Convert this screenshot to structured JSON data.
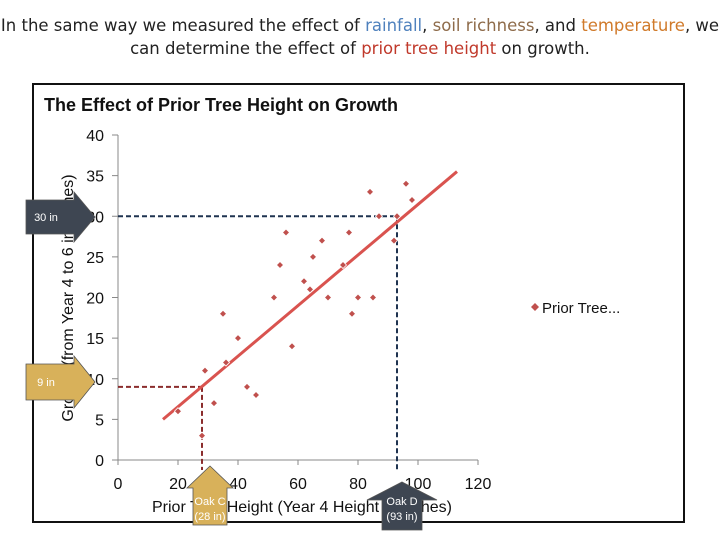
{
  "slide": {
    "heading_parts": [
      {
        "text": "In the same way we measured the effect of ",
        "cls": ""
      },
      {
        "text": "rainfall",
        "cls": "rain"
      },
      {
        "text": ", ",
        "cls": ""
      },
      {
        "text": "soil richness",
        "cls": "soil"
      },
      {
        "text": ", and ",
        "cls": ""
      },
      {
        "text": "temperature",
        "cls": "temp"
      },
      {
        "text": ", we can determine the effect of ",
        "cls": ""
      },
      {
        "text": "prior tree height",
        "cls": "prior"
      },
      {
        "text": " on growth.",
        "cls": ""
      }
    ]
  },
  "callouts": {
    "left_top": "30 in",
    "left_bottom": "9 in",
    "oak_c_name": "Oak C",
    "oak_c_value": "(28 in)",
    "oak_d_name": "Oak D",
    "oak_d_value": "(93 in)"
  },
  "colors": {
    "points": "#c0504d",
    "trend": "#d9534f",
    "callout_dark": "#3e4652",
    "callout_gold": "#d8b15a",
    "guide": "#8b2d2d",
    "guide_dark": "#1f3350"
  },
  "chart_data": {
    "type": "scatter",
    "title": "The Effect of Prior Tree Height on Growth",
    "xlabel": "Prior Tree Height (Year 4 Height in inches)",
    "ylabel": "Growth (from Year 4 to 6 in inches)",
    "xlim": [
      0,
      120
    ],
    "ylim": [
      0,
      40
    ],
    "x_ticks": [
      0,
      20,
      40,
      60,
      80,
      100,
      120
    ],
    "y_ticks": [
      0,
      5,
      10,
      15,
      20,
      25,
      30,
      35,
      40
    ],
    "legend": [
      "Prior Tree..."
    ],
    "legend_position": "right",
    "grid": false,
    "series": [
      {
        "name": "Prior Tree...",
        "points": [
          [
            20,
            6
          ],
          [
            28,
            3
          ],
          [
            29,
            11
          ],
          [
            32,
            7
          ],
          [
            35,
            18
          ],
          [
            36,
            12
          ],
          [
            40,
            15
          ],
          [
            43,
            9
          ],
          [
            46,
            8
          ],
          [
            52,
            20
          ],
          [
            54,
            24
          ],
          [
            56,
            28
          ],
          [
            58,
            14
          ],
          [
            62,
            22
          ],
          [
            64,
            21
          ],
          [
            65,
            25
          ],
          [
            68,
            27
          ],
          [
            70,
            20
          ],
          [
            75,
            24
          ],
          [
            77,
            28
          ],
          [
            78,
            18
          ],
          [
            80,
            20
          ],
          [
            84,
            33
          ],
          [
            85,
            20
          ],
          [
            87,
            30
          ],
          [
            92,
            27
          ],
          [
            93,
            30
          ],
          [
            96,
            34
          ],
          [
            98,
            32
          ]
        ]
      }
    ],
    "trendline": {
      "x": [
        15,
        113
      ],
      "y": [
        5,
        35.5
      ]
    },
    "guides": [
      {
        "label": "Oak C",
        "x": 28,
        "y": 9
      },
      {
        "label": "Oak D",
        "x": 93,
        "y": 30
      }
    ]
  }
}
